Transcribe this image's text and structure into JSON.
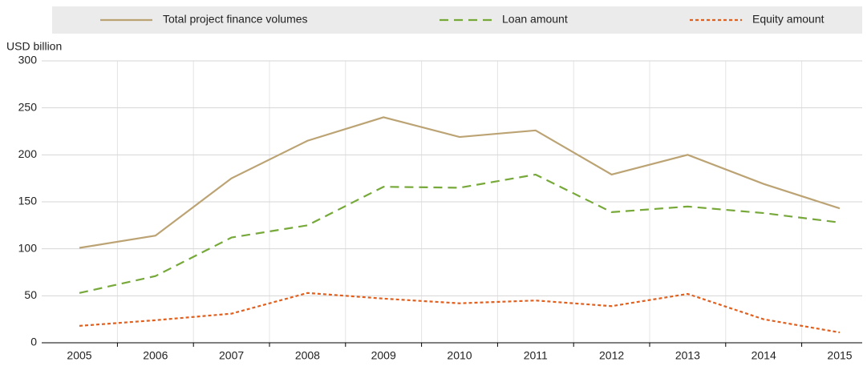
{
  "chart_data": {
    "type": "line",
    "y_label": "USD billion",
    "categories": [
      "2005",
      "2006",
      "2007",
      "2008",
      "2009",
      "2010",
      "2011",
      "2012",
      "2013",
      "2014",
      "2015"
    ],
    "series": [
      {
        "name": "Total project finance volumes",
        "color": "#bca374",
        "style": "solid",
        "values": [
          101,
          114,
          175,
          215,
          240,
          219,
          226,
          179,
          200,
          169,
          143
        ]
      },
      {
        "name": "Loan amount",
        "color": "#77a83a",
        "style": "dashed",
        "values": [
          53,
          71,
          112,
          125,
          166,
          165,
          179,
          139,
          145,
          138,
          128
        ]
      },
      {
        "name": "Equity amount",
        "color": "#e0601f",
        "style": "dotted",
        "values": [
          18,
          24,
          31,
          53,
          47,
          42,
          45,
          39,
          52,
          25,
          11
        ]
      }
    ],
    "ylim": [
      0,
      300
    ],
    "yticks": [
      0,
      50,
      100,
      150,
      200,
      250,
      300
    ],
    "grid": true
  }
}
